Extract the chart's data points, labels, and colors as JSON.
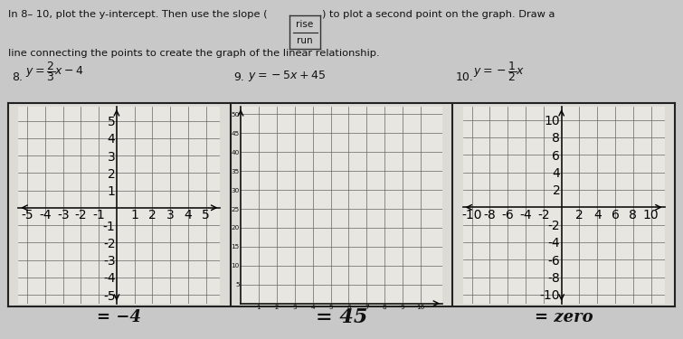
{
  "bg_color": "#c8c8c8",
  "paper_color": "#e8e6e0",
  "box_color": "#dddbd5",
  "border_color": "#222222",
  "grid_color": "#666666",
  "title_line1": "In 8– 10, plot the y-intercept. Then use the slope (        ) to plot a second point on the graph. Draw a",
  "title_line2": "line connecting the points to create the graph of the linear relationship.",
  "problems": [
    {
      "number": "8.",
      "eq_text": "$y = \\\\dfrac{2}{3}x - 4$",
      "xlim": [
        -5.5,
        5.8
      ],
      "ylim": [
        -5.5,
        5.8
      ],
      "xticks": [
        -5,
        -4,
        -3,
        -2,
        -1,
        1,
        2,
        3,
        4,
        5
      ],
      "yticks": [
        -5,
        -4,
        -3,
        -2,
        -1,
        1,
        2,
        3,
        4,
        5
      ],
      "xtick_labels": [
        "-5",
        "-4",
        "-3",
        "-2",
        "-1",
        "1",
        "2",
        "3",
        "4",
        "5"
      ],
      "ytick_labels": [
        "-5",
        "-4",
        "-3",
        "-2",
        "-1",
        "1",
        "2",
        "3",
        "4",
        "5"
      ],
      "centered_axes": true,
      "note": "= −4",
      "note_style": "printed"
    },
    {
      "number": "9.",
      "eq_text": "$y = -5x + 45$",
      "xlim": [
        0,
        11.2
      ],
      "ylim": [
        0,
        52
      ],
      "xticks": [
        1,
        2,
        3,
        4,
        5,
        6,
        7,
        8,
        9,
        10
      ],
      "yticks": [
        5,
        10,
        15,
        20,
        25,
        30,
        35,
        40,
        45,
        50
      ],
      "xtick_labels": [
        "1",
        "2",
        "3",
        "4",
        "5",
        "6",
        "7",
        "8",
        "9",
        "10"
      ],
      "ytick_labels": [
        "5",
        "10",
        "15",
        "20",
        "25",
        "30",
        "35",
        "40",
        "45",
        "50"
      ],
      "centered_axes": false,
      "note": "= 45",
      "note_style": "handwritten"
    },
    {
      "number": "10.",
      "eq_text": "$y = -\\\\dfrac{1}{2}x$",
      "xlim": [
        -11,
        11.5
      ],
      "ylim": [
        -11,
        11.5
      ],
      "xticks": [
        -10,
        -8,
        -6,
        -4,
        -2,
        2,
        4,
        6,
        8,
        10
      ],
      "yticks": [
        -10,
        -8,
        -6,
        -4,
        -2,
        2,
        4,
        6,
        8,
        10
      ],
      "xtick_labels": [
        "-10",
        "-8",
        "-6",
        "-4",
        "-2",
        "2",
        "4",
        "6",
        "8",
        "10"
      ],
      "ytick_labels": [
        "-10",
        "-8",
        "-6",
        "-4",
        "-2",
        "2",
        "4",
        "6",
        "8",
        "10"
      ],
      "centered_axes": true,
      "note": "= zero",
      "note_style": "handwritten"
    }
  ],
  "note8": "= −4",
  "note9": "= 45",
  "note10": "= zero"
}
